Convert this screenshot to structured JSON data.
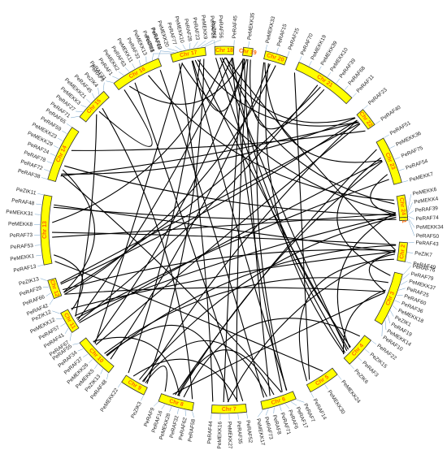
{
  "diagram": {
    "chromosomes": [
      {
        "label": "Chr 1"
      },
      {
        "label": "Chr 2"
      },
      {
        "label": "Chr 3"
      },
      {
        "label": "Chr 4"
      },
      {
        "label": "Chr 5"
      },
      {
        "label": "Chr 6"
      },
      {
        "label": "Chr 7"
      },
      {
        "label": "Chr 8"
      },
      {
        "label": "Chr 9"
      },
      {
        "label": "Chr 10"
      },
      {
        "label": "Chr 11"
      },
      {
        "label": "Chr 12"
      },
      {
        "label": "Chr 13"
      },
      {
        "label": "Chr 14"
      },
      {
        "label": "Chr 15"
      },
      {
        "label": "Chr 16"
      },
      {
        "label": "Chr 17"
      },
      {
        "label": "Chr 18"
      },
      {
        "label": "Chr 19"
      },
      {
        "label": "Chr 20"
      },
      {
        "label": "Chr 21"
      },
      {
        "label": "Chr 22"
      },
      {
        "label": "Chr 23"
      },
      {
        "label": "Chr 24"
      }
    ],
    "genes": [
      {
        "chr": "Chr 1",
        "names": [
          "PeMEKK6",
          "PeMEKK4",
          "PeRAF39",
          "PeRAF74",
          "PeMEKK34",
          "PeRAF50"
        ]
      },
      {
        "chr": "Chr 2",
        "names": [
          "PeRAF43",
          "PeZIK7",
          "PeRAF49"
        ]
      },
      {
        "chr": "Chr 3",
        "names": [
          "PeRAF76",
          "PeRAF79",
          "PeMEKK37",
          "PeRAF25",
          "PeRAF60",
          "PeRAF36",
          "PeMEKK18",
          "PeZIK1",
          "PeRAF19",
          "PeMEKK14",
          "PeRAF10"
        ]
      },
      {
        "chr": "Chr 4",
        "names": [
          "PeRAF22",
          "PeZIK15",
          "PeRAF3",
          "PeZIK6"
        ]
      },
      {
        "chr": "Chr 5",
        "names": [
          "PeMEKK24",
          "PeMEKK30",
          "PeRAF14"
        ]
      },
      {
        "chr": "Chr 6",
        "names": [
          "PeRAF7",
          "PeRAF17",
          "PeRAF6",
          "PeRAF71",
          "PeRAF8",
          "PeRAF73",
          "PeMEKK17"
        ]
      },
      {
        "chr": "Chr 7",
        "names": [
          "PeRAF52",
          "PeRAF35",
          "PeMEKK27",
          "PeMEKK16",
          "PeRAF44"
        ]
      },
      {
        "chr": "Chr 8",
        "names": [
          "PeRAF58",
          "PeRAF62",
          "PeRAF32",
          "PeMEKK28",
          "PeRAF16",
          "PeRAF9"
        ]
      },
      {
        "chr": "Chr 9",
        "names": [
          "PeZIK3",
          "PeMEKK22"
        ]
      },
      {
        "chr": "Chr 10",
        "names": [
          "PeRAF48",
          "PeZIK13",
          "PeMEKK5",
          "PeMEKK26",
          "PeRAF37",
          "PeRAF34",
          "PeRAF55"
        ]
      },
      {
        "chr": "Chr 11",
        "names": [
          "PeRAF67",
          "PeRAF41",
          "PeRAF57",
          "PeMEKK12",
          "PeZIK12"
        ]
      },
      {
        "chr": "Chr 12",
        "names": [
          "PeRAF42",
          "PeRAF66",
          "PeRAF29",
          "PeZIK13"
        ]
      },
      {
        "chr": "Chr 13",
        "names": [
          "PeRAF13",
          "PeMEKK1",
          "PeRAF53",
          "PeRAF73",
          "PeMEKK8",
          "PeMEKK31",
          "PeRAF48",
          "PeZIK11"
        ]
      },
      {
        "chr": "Chr 14",
        "names": [
          "PeRAF38",
          "PeRAF72",
          "PeRAF78",
          "PeRAF24",
          "PeMEKK29",
          "PeMEKK23",
          "PeRAF59",
          "PeRAF65"
        ]
      },
      {
        "chr": "Chr 15",
        "names": [
          "PeRAF71",
          "PeRAF27",
          "PeMEKK3",
          "PeMEKK21",
          "PeRAF45",
          "PeZIK4",
          "PeRAF5"
        ]
      },
      {
        "chr": "Chr 16",
        "names": [
          "PeRAF31",
          "PeRAF1",
          "PeMEKK2",
          "PeRAF63",
          "PeMEKK11",
          "PeRAF33",
          "PeMEKK13",
          "PeZIK8",
          "PeRAF62"
        ]
      },
      {
        "chr": "Chr 17",
        "names": [
          "PeRAF21",
          "PeRAF69",
          "PeMEKK20",
          "PeRAF77",
          "PeMEKK10",
          "PeRAF28",
          "PeRAF23",
          "PeMEKK9",
          "PeRAF26",
          "PeRAF56"
        ]
      },
      {
        "chr": "Chr 18",
        "names": [
          "PeZIK2",
          "PeRAF45"
        ]
      },
      {
        "chr": "Chr 19",
        "names": [
          "PeMEKK35"
        ]
      },
      {
        "chr": "Chr 20",
        "names": [
          "PeMEKK33",
          "PeRAF15",
          "PeRAF25"
        ]
      },
      {
        "chr": "Chr 21",
        "names": [
          "PeRAF70",
          "PeMEKK19",
          "PeMEKK39",
          "PeMEKK10",
          "PeRAF39",
          "PeRAF68",
          "PeRAF11"
        ]
      },
      {
        "chr": "Chr 22",
        "names": [
          "PeRAF23",
          "PeRAF40"
        ]
      },
      {
        "chr": "Chr 23",
        "names": [
          "PeRAF51",
          "PeMEKK36",
          "PeRAF75",
          "PeRAF54",
          "PeMEKK7"
        ]
      },
      {
        "chr": "Chr 24",
        "names": []
      }
    ],
    "links_count": 80
  },
  "colors": {
    "chromosome_fill": "#ffff00",
    "chromosome_label": "#ff6600",
    "link": "#000000",
    "gene_tick": "#6fa0c8"
  }
}
